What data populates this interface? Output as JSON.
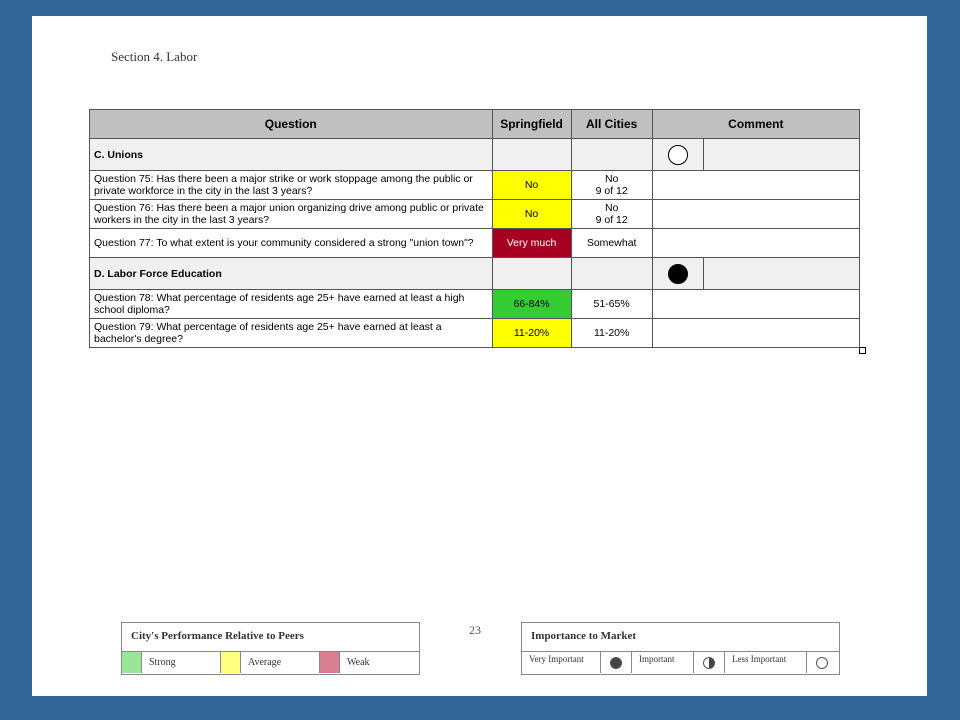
{
  "section_title": "Section 4. Labor",
  "table": {
    "headers": [
      "Question",
      "Springfield",
      "All Cities",
      "Comment"
    ],
    "sections": [
      {
        "title": "C. Unions",
        "importance": "empty",
        "rows": [
          {
            "question": "Question 75: Has there been a major strike or work stoppage among the public or private workforce in the city in the last 3 years?",
            "springfield": "No",
            "springfield_rating": "average",
            "all_cities": "No\n9 of 12"
          },
          {
            "question": "Question 76: Has there been a major union organizing drive among public or private workers in the city in the last 3 years?",
            "springfield": "No",
            "springfield_rating": "average",
            "all_cities": "No\n9 of 12"
          },
          {
            "question": "Question 77: To what extent is your community considered a strong \"union town\"?",
            "springfield": "Very much",
            "springfield_rating": "weak",
            "all_cities": "Somewhat"
          }
        ]
      },
      {
        "title": "D. Labor Force Education",
        "importance": "full",
        "rows": [
          {
            "question": "Question 78: What percentage of residents age 25+ have earned at least a high school diploma?",
            "springfield": "66-84%",
            "springfield_rating": "strong",
            "all_cities": "51-65%"
          },
          {
            "question": "Question 79: What percentage of residents age 25+ have earned at least a bachelor's degree?",
            "springfield": "11-20%",
            "springfield_rating": "average",
            "all_cities": "11-20%"
          }
        ]
      }
    ]
  },
  "page_number": "23",
  "performance_legend": {
    "title": "City's Performance Relative to Peers",
    "items": [
      {
        "label": "Strong",
        "color": "#99e699"
      },
      {
        "label": "Average",
        "color": "#ffff80"
      },
      {
        "label": "Weak",
        "color": "#d98090"
      }
    ]
  },
  "importance_legend": {
    "title": "Importance to Market",
    "items": [
      {
        "label": "Very Important",
        "icon": "full-circle-icon"
      },
      {
        "label": "Important",
        "icon": "half-circle-icon"
      },
      {
        "label": "Less Important",
        "icon": "empty-circle-icon"
      }
    ]
  }
}
